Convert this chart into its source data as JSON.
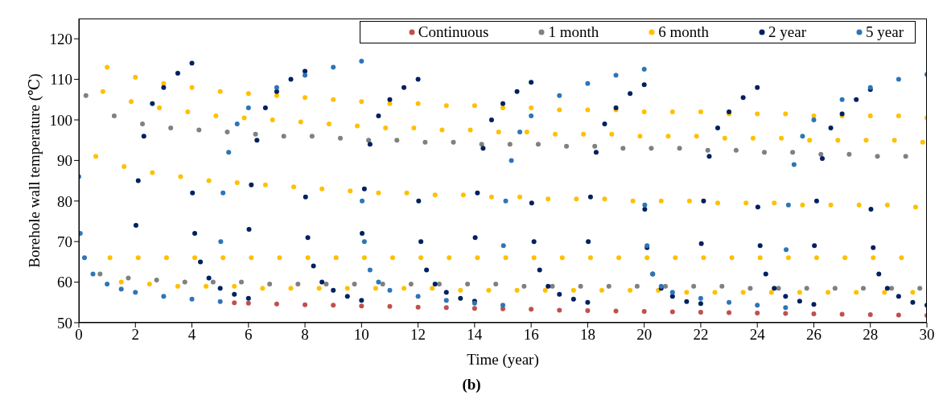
{
  "chart_data": {
    "type": "scatter",
    "xlabel": "Time (year)",
    "ylabel": "Borehole wall temperature (℃)",
    "annotations": [
      "(b)"
    ],
    "xlim": [
      0,
      30
    ],
    "xticks": [
      0,
      2,
      4,
      6,
      8,
      10,
      12,
      14,
      16,
      18,
      20,
      22,
      24,
      26,
      28,
      30
    ],
    "ylim": [
      50,
      125
    ],
    "yticks": [
      50,
      60,
      70,
      80,
      90,
      100,
      110,
      120
    ],
    "legend": "top right",
    "marker": "circle",
    "series": [
      {
        "name": "Continuous",
        "color": "#c0504d",
        "x": [
          5.5,
          6,
          7,
          8,
          9,
          10,
          11,
          12,
          13,
          14,
          15,
          16,
          17,
          18,
          19,
          20,
          21,
          22,
          23,
          24,
          25,
          26,
          27,
          28,
          29,
          30
        ],
        "values": [
          54.9,
          54.8,
          54.6,
          54.4,
          54.3,
          54.1,
          54.0,
          53.8,
          53.7,
          53.5,
          53.4,
          53.3,
          53.1,
          53.0,
          52.9,
          52.8,
          52.7,
          52.6,
          52.5,
          52.4,
          52.3,
          52.2,
          52.1,
          52.0,
          51.9,
          51.8
        ]
      },
      {
        "name": "1 month",
        "color": "#808080",
        "x": [
          0.25,
          0.75,
          1.25,
          1.75,
          2.25,
          2.75,
          3.25,
          3.75,
          4.25,
          4.75,
          5.25,
          5.75,
          6.25,
          6.75,
          7.25,
          7.75,
          8.25,
          8.75,
          9.25,
          9.75,
          10.25,
          10.75,
          11.25,
          11.75,
          12.25,
          12.75,
          13.25,
          13.75,
          14.25,
          14.75,
          15.25,
          15.75,
          16.25,
          16.75,
          17.25,
          17.75,
          18.25,
          18.75,
          19.25,
          19.75,
          20.25,
          20.75,
          21.25,
          21.75,
          22.25,
          22.75,
          23.25,
          23.75,
          24.25,
          24.75,
          25.25,
          25.75,
          26.25,
          26.75,
          27.25,
          27.75,
          28.25,
          28.75,
          29.25,
          29.75
        ],
        "values": [
          106,
          62,
          101,
          61,
          99,
          60.5,
          98,
          60,
          97.5,
          60,
          97,
          60,
          96.5,
          59.5,
          96,
          59.5,
          96,
          59.5,
          95.5,
          59.5,
          95,
          59.5,
          95,
          59.5,
          94.5,
          59.5,
          94.5,
          59.5,
          94,
          59.5,
          94,
          59,
          94,
          59,
          93.5,
          59,
          93.5,
          59,
          93,
          59,
          93,
          59,
          93,
          59,
          92.5,
          59,
          92.5,
          58.5,
          92,
          58.5,
          92,
          58.5,
          91.5,
          58.5,
          91.5,
          58.5,
          91,
          58.5,
          91,
          58.5
        ]
      },
      {
        "name": "6 month",
        "color": "#ffc000",
        "x": [
          0.6,
          0.85,
          1,
          1.1,
          1.5,
          1.6,
          1.85,
          2,
          2.1,
          2.5,
          2.6,
          2.85,
          3,
          3.1,
          3.5,
          3.6,
          3.85,
          4,
          4.1,
          4.5,
          4.6,
          4.85,
          5,
          5.1,
          5.5,
          5.6,
          5.85,
          6,
          6.1,
          6.5,
          6.6,
          6.85,
          7,
          7.1,
          7.5,
          7.6,
          7.85,
          8,
          8.1,
          8.5,
          8.6,
          8.85,
          9,
          9.1,
          9.5,
          9.6,
          9.85,
          10,
          10.1,
          10.5,
          10.6,
          10.85,
          11,
          11.1,
          11.5,
          11.6,
          11.85,
          12,
          12.1,
          12.5,
          12.6,
          12.85,
          13,
          13.1,
          13.5,
          13.6,
          13.85,
          14,
          14.1,
          14.5,
          14.6,
          14.85,
          15,
          15.1,
          15.5,
          15.6,
          15.85,
          16,
          16.1,
          16.5,
          16.6,
          16.85,
          17,
          17.1,
          17.5,
          17.6,
          17.85,
          18,
          18.1,
          18.5,
          18.6,
          18.85,
          19,
          19.1,
          19.5,
          19.6,
          19.85,
          20,
          20.1,
          20.5,
          20.6,
          20.85,
          21,
          21.1,
          21.5,
          21.6,
          21.85,
          22,
          22.1,
          22.5,
          22.6,
          22.85,
          23,
          23.1,
          23.5,
          23.6,
          23.85,
          24,
          24.1,
          24.5,
          24.6,
          24.85,
          25,
          25.1,
          25.5,
          25.6,
          25.85,
          26,
          26.1,
          26.5,
          26.6,
          26.85,
          27,
          27.1,
          27.5,
          27.6,
          27.85,
          28,
          28.1,
          28.5,
          28.6,
          28.85,
          29,
          29.1,
          29.5,
          29.6,
          29.85,
          30
        ],
        "values": [
          91,
          107,
          113,
          66,
          60,
          88.5,
          104.5,
          110.5,
          66,
          59.5,
          87,
          103,
          109,
          66,
          59,
          86,
          102,
          108,
          66,
          59,
          85,
          101,
          107,
          66,
          59,
          84.5,
          100.5,
          106.5,
          66,
          58.5,
          84,
          100,
          106,
          66,
          58.5,
          83.5,
          99.5,
          105.5,
          66,
          58.5,
          83,
          99,
          105,
          66,
          58.5,
          82.5,
          98.5,
          104.5,
          66,
          58.5,
          82,
          98,
          104,
          66,
          58.5,
          82,
          98,
          104,
          66,
          58.5,
          81.5,
          97.5,
          103.5,
          66,
          58,
          81.5,
          97.5,
          103.5,
          66,
          58,
          81,
          97,
          103,
          66,
          58,
          81,
          97,
          103,
          66,
          58,
          80.5,
          96.5,
          102.5,
          66,
          58,
          80.5,
          96.5,
          102.5,
          66,
          58,
          80.5,
          96.5,
          102.5,
          66,
          58,
          80,
          96,
          102,
          66,
          58,
          80,
          96,
          102,
          66,
          57.5,
          80,
          96,
          102,
          66,
          57.5,
          79.5,
          95.5,
          101.5,
          66,
          57.5,
          79.5,
          95.5,
          101.5,
          66,
          57.5,
          79.5,
          95.5,
          101.5,
          66,
          57.5,
          79,
          95,
          101,
          66,
          57.5,
          79,
          95,
          101,
          66,
          57.5,
          79,
          95,
          101,
          66,
          57.5,
          79,
          95,
          101,
          66,
          57.5,
          78.5,
          94.5,
          100.5
        ]
      },
      {
        "name": "2 year",
        "color": "#002060",
        "x": [
          2.02,
          2.1,
          2.3,
          2.6,
          3,
          3.5,
          4,
          4.02,
          4.1,
          4.3,
          4.6,
          5,
          5.5,
          6,
          6.02,
          6.1,
          6.3,
          6.6,
          7,
          7.5,
          8,
          8.02,
          8.1,
          8.3,
          8.6,
          9,
          9.5,
          10,
          10.02,
          10.1,
          10.3,
          10.6,
          11,
          11.5,
          12,
          12.02,
          12.1,
          12.3,
          12.6,
          13,
          13.5,
          14,
          14.02,
          14.1,
          14.3,
          14.6,
          15,
          15.5,
          16,
          16.02,
          16.1,
          16.3,
          16.6,
          17,
          17.5,
          18,
          18.02,
          18.1,
          18.3,
          18.6,
          19,
          19.5,
          20,
          20.02,
          20.1,
          20.3,
          20.6,
          21,
          21.5,
          22,
          22.02,
          22.1,
          22.3,
          22.6,
          23,
          23.5,
          24,
          24.02,
          24.1,
          24.3,
          24.6,
          25,
          25.5,
          26,
          26.02,
          26.1,
          26.3,
          26.6,
          27,
          27.5,
          28,
          28.02,
          28.1,
          28.3,
          28.6,
          29,
          29.5,
          30
        ],
        "values": [
          74,
          85,
          96,
          104,
          108,
          111.5,
          114,
          82,
          72,
          65,
          61,
          58.5,
          57,
          56,
          73,
          84,
          95,
          103,
          107,
          110,
          112,
          81,
          71,
          64,
          60,
          58,
          56.5,
          55.5,
          72,
          83,
          94,
          101,
          105,
          108,
          110,
          80,
          70,
          63,
          59.5,
          57.5,
          56,
          55.3,
          71,
          82,
          93,
          100,
          104,
          107,
          109.3,
          79.5,
          70,
          63,
          59,
          57,
          55.8,
          55,
          70,
          81,
          92,
          99,
          103,
          106.5,
          108.7,
          78,
          68.5,
          62,
          58.5,
          56.5,
          55.2,
          54.7,
          69.5,
          80,
          91,
          98,
          102,
          105.5,
          108,
          78.5,
          69,
          62,
          58.5,
          56.5,
          55.3,
          54.5,
          69,
          80,
          90.5,
          98,
          101.5,
          105,
          107.5,
          78,
          68.5,
          62,
          58.5,
          56.5,
          55,
          54.3
        ]
      },
      {
        "name": "5 year",
        "color": "#2e75b6",
        "x": [
          0,
          0.05,
          0.2,
          0.5,
          1,
          1.5,
          2,
          3,
          4,
          5,
          5.02,
          5.1,
          5.3,
          5.6,
          6,
          7,
          8,
          9,
          10,
          10.02,
          10.1,
          10.3,
          10.6,
          11,
          12,
          13,
          14,
          15,
          15.02,
          15.1,
          15.3,
          15.6,
          16,
          17,
          18,
          19,
          20,
          20.02,
          20.1,
          20.3,
          20.6,
          21,
          22,
          23,
          24,
          25,
          25.02,
          25.1,
          25.3,
          25.6,
          26,
          27,
          28,
          29,
          30
        ],
        "values": [
          86,
          72,
          66,
          62,
          59.5,
          58.3,
          57.5,
          56.5,
          55.8,
          55.2,
          70,
          82,
          92,
          99,
          103,
          108,
          111,
          113,
          114.5,
          80,
          70,
          63,
          60,
          58,
          56.5,
          55.5,
          54.8,
          54.3,
          69,
          80,
          90,
          97,
          101,
          106,
          109,
          111,
          112.5,
          79,
          69,
          62,
          59,
          57.5,
          56,
          55,
          54.3,
          53.7,
          68,
          79,
          89,
          96,
          100,
          105,
          108,
          110,
          111.2
        ]
      }
    ]
  }
}
